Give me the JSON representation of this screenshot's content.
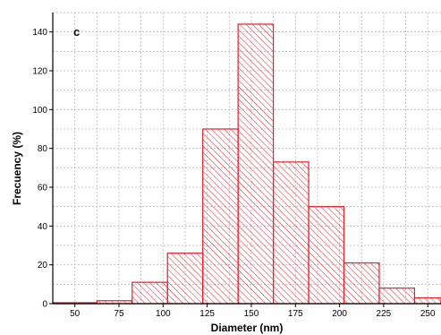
{
  "chart_data": {
    "type": "bar",
    "panel_label": "c",
    "xlabel": "Diameter (nm)",
    "ylabel": "Frecuency (%)",
    "xlim": [
      37.5,
      257.5
    ],
    "ylim": [
      0,
      150
    ],
    "x_ticks": [
      50,
      75,
      100,
      125,
      150,
      175,
      200,
      225,
      250
    ],
    "y_ticks": [
      0,
      20,
      40,
      60,
      80,
      100,
      120,
      140
    ],
    "grid": true,
    "bin_width": 25,
    "bins": [
      {
        "from": 37.5,
        "to": 62.5,
        "value": 0.5
      },
      {
        "from": 62.5,
        "to": 87.5,
        "value": 1.5
      },
      {
        "from": 87.5,
        "to": 112.5,
        "value": 11
      },
      {
        "from": 112.5,
        "to": 137.5,
        "value": 26
      },
      {
        "from": 137.5,
        "to": 162.5,
        "value": 90
      },
      {
        "from": 162.5,
        "to": 187.5,
        "value": 144
      },
      {
        "from": 187.5,
        "to": 212.5,
        "value": 73
      },
      {
        "from": 212.5,
        "to": 237.5,
        "value": 50
      },
      {
        "from": 237.5,
        "to": 262.5,
        "value": 21
      }
    ],
    "extra_bins": [
      {
        "from": 212.5,
        "to": 237.5,
        "value": 8
      },
      {
        "from": 237.5,
        "to": 257.5,
        "value": 3
      }
    ],
    "colors": {
      "bar_stroke": "#e8202a",
      "hatch": "#e8202a",
      "grid": "#b8b8b8",
      "axis": "#000000"
    }
  }
}
